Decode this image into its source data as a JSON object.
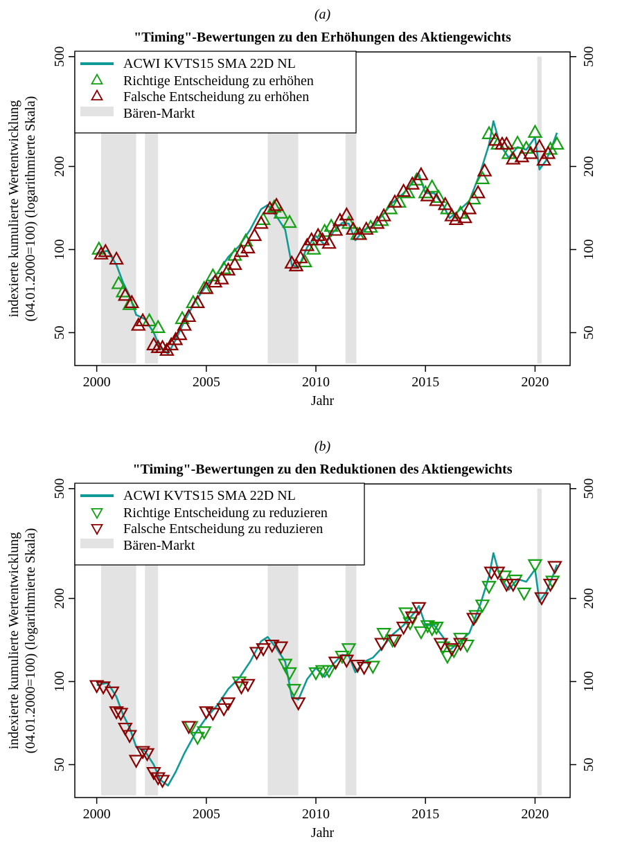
{
  "chart_data": [
    {
      "type": "line",
      "panel_label": "(a)",
      "title": "\"Timing\"-Bewertungen zu den Erhöhungen des Aktiengewichts",
      "xlabel": "Jahr",
      "ylabel_line1": "indexierte kumulierte Wertentwicklung",
      "ylabel_line2": "(04.01.2000=100) (logarithmierte Skala)",
      "y_scale": "log",
      "xlim": [
        1999.0,
        2021.6
      ],
      "ylim": [
        38,
        520
      ],
      "x_ticks": [
        2000,
        2005,
        2010,
        2015,
        2020
      ],
      "y_ticks": [
        50,
        100,
        200,
        500
      ],
      "legend_position": "top-left",
      "legend": {
        "line": "ACWI KVTS15 SMA 22D NL",
        "correct": "Richtige Entscheidung zu erhöhen",
        "wrong": "Falsche Entscheidung zu erhöhen",
        "bear": "Bären-Markt"
      },
      "marker": "triangle-up",
      "colors": {
        "line": "#0f9a96",
        "correct": "#14a014",
        "wrong": "#8b0000",
        "bear": "#e3e3e3"
      },
      "bear_markets": [
        [
          2000.2,
          2001.8
        ],
        [
          2002.2,
          2002.8
        ],
        [
          2007.8,
          2009.2
        ],
        [
          2011.35,
          2011.85
        ],
        [
          2020.1,
          2020.3
        ]
      ],
      "series": [
        {
          "name": "ACWI KVTS15 SMA 22D NL",
          "x": [
            2000.0,
            2000.5,
            2000.9,
            2001.2,
            2001.5,
            2001.8,
            2002.2,
            2002.6,
            2002.9,
            2003.25,
            2003.6,
            2004.0,
            2004.5,
            2005.0,
            2005.5,
            2006.0,
            2006.5,
            2007.0,
            2007.5,
            2007.8,
            2008.2,
            2008.6,
            2008.9,
            2009.2,
            2009.6,
            2010.0,
            2010.4,
            2010.8,
            2011.2,
            2011.5,
            2011.8,
            2012.2,
            2012.6,
            2013.0,
            2013.5,
            2014.0,
            2014.5,
            2014.7,
            2015.0,
            2015.4,
            2015.8,
            2016.1,
            2016.5,
            2017.0,
            2017.5,
            2017.9,
            2018.1,
            2018.4,
            2018.8,
            2019.2,
            2019.6,
            2020.0,
            2020.2,
            2020.5,
            2020.8,
            2021.0
          ],
          "y": [
            97,
            99,
            88,
            76,
            68,
            58,
            56,
            50,
            44,
            42,
            47,
            55,
            65,
            74,
            82,
            94,
            103,
            118,
            140,
            145,
            132,
            118,
            88,
            86,
            102,
            112,
            104,
            116,
            125,
            124,
            108,
            118,
            122,
            132,
            148,
            160,
            178,
            188,
            160,
            160,
            145,
            130,
            138,
            150,
            190,
            240,
            292,
            240,
            215,
            235,
            230,
            255,
            195,
            210,
            240,
            265
          ]
        },
        {
          "name": "Richtige Entscheidung zu erhöhen",
          "x": [
            2000.1,
            2001.0,
            2001.2,
            2001.5,
            2002.4,
            2002.8,
            2003.9,
            2004.4,
            2004.9,
            2005.3,
            2005.8,
            2006.3,
            2006.8,
            2007.6,
            2008.1,
            2008.4,
            2008.8,
            2009.5,
            2009.9,
            2010.4,
            2010.7,
            2011.5,
            2011.9,
            2012.5,
            2013.0,
            2013.4,
            2013.8,
            2014.2,
            2014.6,
            2015.0,
            2015.3,
            2015.6,
            2016.0,
            2016.6,
            2017.2,
            2017.6,
            2017.9,
            2018.3,
            2018.8,
            2019.2,
            2019.6,
            2020.0,
            2020.7,
            2021.0
          ],
          "y": [
            100,
            75,
            70,
            63,
            55,
            52,
            56,
            64,
            72,
            80,
            85,
            95,
            107,
            128,
            142,
            135,
            125,
            90,
            100,
            116,
            121,
            124,
            113,
            120,
            127,
            140,
            148,
            160,
            178,
            160,
            168,
            154,
            140,
            135,
            152,
            180,
            262,
            240,
            222,
            242,
            232,
            265,
            230,
            240
          ]
        },
        {
          "name": "Falsche Entscheidung zu erhöhen",
          "x": [
            2000.2,
            2000.4,
            2000.9,
            2001.3,
            2001.6,
            2001.9,
            2002.1,
            2002.6,
            2002.8,
            2003.0,
            2003.2,
            2003.4,
            2003.6,
            2003.8,
            2004.0,
            2004.2,
            2004.6,
            2005.0,
            2005.4,
            2005.7,
            2006.0,
            2006.3,
            2006.6,
            2006.9,
            2007.2,
            2007.5,
            2007.9,
            2008.2,
            2008.9,
            2009.1,
            2009.3,
            2009.6,
            2009.8,
            2010.1,
            2010.3,
            2010.6,
            2010.9,
            2011.1,
            2011.4,
            2011.7,
            2012.0,
            2012.3,
            2012.8,
            2013.1,
            2013.6,
            2014.0,
            2014.4,
            2014.8,
            2015.1,
            2015.5,
            2015.9,
            2016.2,
            2016.4,
            2016.8,
            2017.0,
            2017.4,
            2017.7,
            2018.2,
            2018.5,
            2018.7,
            2019.0,
            2019.4,
            2019.8,
            2020.2,
            2020.4,
            2020.6
          ],
          "y": [
            96,
            98,
            92,
            68,
            64,
            53,
            55,
            45,
            44,
            44,
            43,
            45,
            47,
            49,
            53,
            57,
            64,
            72,
            76,
            78,
            84,
            88,
            98,
            101,
            112,
            124,
            140,
            144,
            89,
            87,
            93,
            103,
            108,
            112,
            108,
            105,
            117,
            127,
            133,
            118,
            113,
            118,
            124,
            132,
            148,
            162,
            172,
            186,
            156,
            150,
            145,
            132,
            128,
            130,
            140,
            160,
            192,
            248,
            240,
            240,
            212,
            216,
            222,
            235,
            210,
            222
          ]
        }
      ]
    },
    {
      "type": "line",
      "panel_label": "(b)",
      "title": "\"Timing\"-Bewertungen zu den Reduktionen des Aktiengewichts",
      "xlabel": "Jahr",
      "ylabel_line1": "indexierte kumulierte Wertentwicklung",
      "ylabel_line2": "(04.01.2000=100) (logarithmierte Skala)",
      "y_scale": "log",
      "xlim": [
        1999.0,
        2021.6
      ],
      "ylim": [
        38,
        520
      ],
      "x_ticks": [
        2000,
        2005,
        2010,
        2015,
        2020
      ],
      "y_ticks": [
        50,
        100,
        200,
        500
      ],
      "legend_position": "top-left",
      "legend": {
        "line": "ACWI KVTS15 SMA 22D NL",
        "correct": "Richtige Entscheidung zu reduzieren",
        "wrong": "Falsche Entscheidung zu reduzieren",
        "bear": "Bären-Markt"
      },
      "marker": "triangle-down",
      "colors": {
        "line": "#0f9a96",
        "correct": "#14a014",
        "wrong": "#8b0000",
        "bear": "#e3e3e3"
      },
      "bear_markets": [
        [
          2000.2,
          2001.8
        ],
        [
          2002.2,
          2002.8
        ],
        [
          2007.8,
          2009.2
        ],
        [
          2011.35,
          2011.85
        ],
        [
          2020.1,
          2020.3
        ]
      ],
      "series": [
        {
          "name": "ACWI KVTS15 SMA 22D NL",
          "x": [
            2000.0,
            2000.5,
            2000.9,
            2001.2,
            2001.5,
            2001.8,
            2002.2,
            2002.6,
            2002.9,
            2003.25,
            2003.6,
            2004.0,
            2004.5,
            2005.0,
            2005.5,
            2006.0,
            2006.5,
            2007.0,
            2007.5,
            2007.8,
            2008.2,
            2008.6,
            2008.9,
            2009.2,
            2009.6,
            2010.0,
            2010.4,
            2010.8,
            2011.2,
            2011.5,
            2011.8,
            2012.2,
            2012.6,
            2013.0,
            2013.5,
            2014.0,
            2014.5,
            2014.7,
            2015.0,
            2015.4,
            2015.8,
            2016.1,
            2016.5,
            2017.0,
            2017.5,
            2017.9,
            2018.1,
            2018.4,
            2018.8,
            2019.2,
            2019.6,
            2020.0,
            2020.2,
            2020.5,
            2020.8,
            2021.0
          ],
          "y": [
            97,
            99,
            88,
            76,
            68,
            58,
            56,
            50,
            44,
            42,
            47,
            55,
            65,
            74,
            82,
            94,
            103,
            118,
            140,
            145,
            132,
            118,
            88,
            86,
            102,
            112,
            104,
            116,
            125,
            124,
            108,
            118,
            122,
            132,
            148,
            160,
            178,
            188,
            160,
            160,
            145,
            130,
            138,
            150,
            190,
            240,
            292,
            240,
            215,
            235,
            230,
            255,
            195,
            210,
            240,
            265
          ]
        },
        {
          "name": "Richtige Entscheidung zu reduzieren",
          "x": [
            2004.3,
            2004.6,
            2004.9,
            2006.5,
            2008.6,
            2008.8,
            2009.0,
            2010.0,
            2010.3,
            2010.6,
            2011.2,
            2011.5,
            2012.6,
            2013.1,
            2013.5,
            2014.1,
            2014.3,
            2014.8,
            2015.1,
            2015.3,
            2015.5,
            2015.8,
            2016.0,
            2016.3,
            2016.6,
            2016.9,
            2017.3,
            2017.6,
            2017.9,
            2018.6,
            2019.1,
            2019.5,
            2020.0,
            2020.8
          ],
          "y": [
            69,
            63,
            66,
            100,
            116,
            108,
            94,
            108,
            110,
            110,
            124,
            132,
            114,
            150,
            142,
            178,
            164,
            152,
            160,
            156,
            158,
            134,
            124,
            130,
            144,
            136,
            174,
            190,
            222,
            242,
            234,
            210,
            266,
            232
          ]
        },
        {
          "name": "Falsche Entscheidung zu reduzieren",
          "x": [
            2000.0,
            2000.3,
            2000.7,
            2000.9,
            2001.1,
            2001.3,
            2001.5,
            2001.8,
            2002.1,
            2002.3,
            2002.6,
            2002.8,
            2003.0,
            2004.2,
            2005.0,
            2005.3,
            2005.8,
            2006.0,
            2006.6,
            2006.9,
            2007.3,
            2007.6,
            2008.0,
            2008.4,
            2009.2,
            2010.9,
            2011.4,
            2011.9,
            2012.2,
            2013.0,
            2013.6,
            2014.0,
            2014.4,
            2014.7,
            2015.7,
            2016.2,
            2016.6,
            2017.2,
            2018.0,
            2018.3,
            2018.7,
            2019.0,
            2020.3,
            2020.7,
            2020.9
          ],
          "y": [
            97,
            96,
            92,
            78,
            77,
            68,
            64,
            52,
            56,
            55,
            47,
            45,
            44,
            69,
            78,
            77,
            80,
            84,
            96,
            98,
            128,
            132,
            136,
            134,
            84,
            118,
            120,
            115,
            113,
            138,
            142,
            158,
            172,
            186,
            138,
            132,
            138,
            170,
            250,
            250,
            226,
            226,
            202,
            226,
            262
          ]
        }
      ]
    }
  ]
}
